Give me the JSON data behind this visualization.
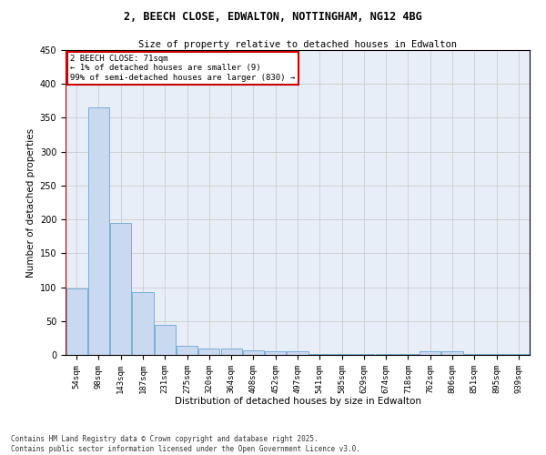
{
  "title_line1": "2, BEECH CLOSE, EDWALTON, NOTTINGHAM, NG12 4BG",
  "title_line2": "Size of property relative to detached houses in Edwalton",
  "xlabel": "Distribution of detached houses by size in Edwalton",
  "ylabel": "Number of detached properties",
  "categories": [
    "54sqm",
    "98sqm",
    "143sqm",
    "187sqm",
    "231sqm",
    "275sqm",
    "320sqm",
    "364sqm",
    "408sqm",
    "452sqm",
    "497sqm",
    "541sqm",
    "585sqm",
    "629sqm",
    "674sqm",
    "718sqm",
    "762sqm",
    "806sqm",
    "851sqm",
    "895sqm",
    "939sqm"
  ],
  "values": [
    98,
    365,
    195,
    93,
    45,
    14,
    10,
    10,
    7,
    5,
    5,
    2,
    2,
    2,
    2,
    2,
    5,
    5,
    2,
    2,
    2
  ],
  "bar_color": "#c9d9f0",
  "bar_edge_color": "#7bafd4",
  "annotation_text": "2 BEECH CLOSE: 71sqm\n← 1% of detached houses are smaller (9)\n99% of semi-detached houses are larger (830) →",
  "annotation_box_color": "#ffffff",
  "annotation_box_edge_color": "#cc0000",
  "ylim": [
    0,
    450
  ],
  "yticks": [
    0,
    50,
    100,
    150,
    200,
    250,
    300,
    350,
    400,
    450
  ],
  "grid_color": "#cccccc",
  "background_color": "#e8eef8",
  "footer_line1": "Contains HM Land Registry data © Crown copyright and database right 2025.",
  "footer_line2": "Contains public sector information licensed under the Open Government Licence v3.0."
}
